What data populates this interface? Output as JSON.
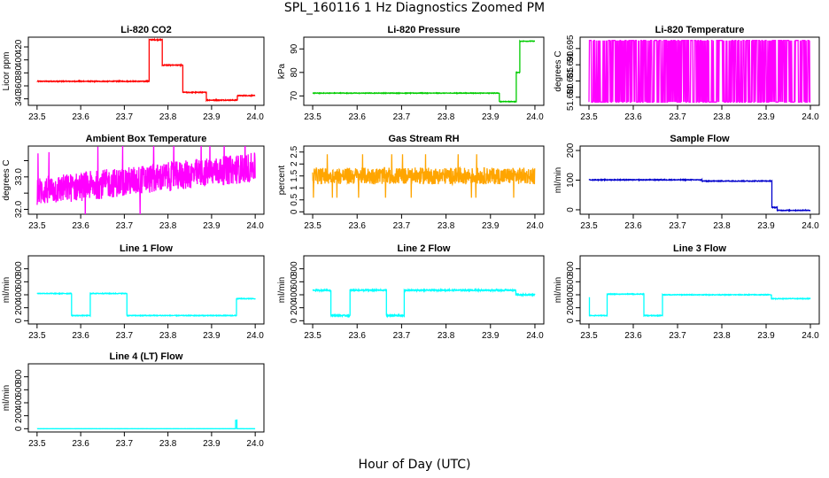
{
  "figure": {
    "title": "SPL_160116  1 Hz Diagnostics Zoomed PM",
    "xlabel": "Hour of Day (UTC)"
  },
  "chart_data": [
    {
      "id": "co2",
      "type": "line",
      "title": "Li-820 CO2",
      "ylabel": "Licor ppm",
      "color": "#ff0000",
      "xlim": [
        23.48,
        24.02
      ],
      "xticks": [
        "23.5",
        "23.6",
        "23.7",
        "23.8",
        "23.9",
        "24.0"
      ],
      "ylim": [
        330,
        435
      ],
      "yticks": [
        340,
        360,
        380,
        400,
        420
      ],
      "noise": 0.6,
      "segments": [
        [
          23.5,
          23.757,
          367
        ],
        [
          23.757,
          23.787,
          431
        ],
        [
          23.787,
          23.834,
          392
        ],
        [
          23.834,
          23.888,
          350
        ],
        [
          23.888,
          23.959,
          338
        ],
        [
          23.959,
          24.0,
          345
        ]
      ]
    },
    {
      "id": "pressure",
      "type": "line",
      "title": "Li-820 Pressure",
      "ylabel": "kPa",
      "color": "#00cc00",
      "xlim": [
        23.48,
        24.02
      ],
      "xticks": [
        "23.5",
        "23.6",
        "23.7",
        "23.8",
        "23.9",
        "24.0"
      ],
      "ylim": [
        66,
        95
      ],
      "yticks": [
        70,
        80,
        90
      ],
      "noise": 0.12,
      "segments": [
        [
          23.5,
          23.92,
          71.2
        ],
        [
          23.92,
          23.958,
          67.6
        ],
        [
          23.958,
          23.966,
          80
        ],
        [
          23.966,
          24.0,
          93.3
        ]
      ]
    },
    {
      "id": "temperature",
      "type": "binary",
      "title": "Li-820 Temperature",
      "ylabel": "degrees C",
      "color": "#ff00ff",
      "xlim": [
        23.48,
        24.02
      ],
      "xticks": [
        "23.5",
        "23.6",
        "23.7",
        "23.8",
        "23.9",
        "24.0"
      ],
      "ylim": [
        51.6775,
        51.6985
      ],
      "yticks": [
        51.68,
        51.685,
        51.69,
        51.695
      ],
      "ytick_labels": [
        "51.680",
        "51.685",
        "51.690",
        "51.695"
      ],
      "levels": [
        51.6785,
        51.6975
      ]
    },
    {
      "id": "ambient",
      "type": "noisy",
      "title": "Ambient Box Temperature",
      "ylabel": "degrees C",
      "color": "#ff00ff",
      "xlim": [
        23.48,
        24.02
      ],
      "xticks": [
        "23.5",
        "23.6",
        "23.7",
        "23.8",
        "23.9",
        "24.0"
      ],
      "ylim": [
        31.85,
        33.95
      ],
      "yticks": [
        32.0,
        32.5,
        33.0,
        33.5
      ],
      "ytick_labels": [
        "32.0",
        "",
        "33.0",
        ""
      ],
      "trend": [
        [
          23.5,
          32.55
        ],
        [
          24.0,
          33.3
        ]
      ],
      "amplitude": 0.45
    },
    {
      "id": "rh",
      "type": "noisy",
      "title": "Gas Stream RH",
      "ylabel": "percent",
      "color": "#ffa500",
      "xlim": [
        23.48,
        24.02
      ],
      "xticks": [
        "23.5",
        "23.6",
        "23.7",
        "23.8",
        "23.9",
        "24.0"
      ],
      "ylim": [
        -0.1,
        2.75
      ],
      "yticks": [
        0.0,
        0.5,
        1.0,
        1.5,
        2.0,
        2.5
      ],
      "trend": [
        [
          23.5,
          1.5
        ],
        [
          24.0,
          1.5
        ]
      ],
      "amplitude": 0.35
    },
    {
      "id": "sample_flow",
      "type": "line",
      "title": "Sample Flow",
      "ylabel": "ml/min",
      "color": "#0000cc",
      "xlim": [
        23.48,
        24.02
      ],
      "xticks": [
        "23.5",
        "23.6",
        "23.7",
        "23.8",
        "23.9",
        "24.0"
      ],
      "ylim": [
        -15,
        215
      ],
      "yticks": [
        0,
        100,
        200
      ],
      "noise": 1.2,
      "segments": [
        [
          23.5,
          23.755,
          101
        ],
        [
          23.755,
          23.913,
          97
        ],
        [
          23.913,
          23.925,
          8
        ],
        [
          23.925,
          24.0,
          -2
        ]
      ]
    },
    {
      "id": "line1",
      "type": "line",
      "title": "Line 1 Flow",
      "ylabel": "ml/min",
      "color": "#00ffff",
      "xlim": [
        23.48,
        24.02
      ],
      "xticks": [
        "23.5",
        "23.6",
        "23.7",
        "23.8",
        "23.9",
        "24.0"
      ],
      "ylim": [
        -50,
        1000
      ],
      "yticks": [
        0,
        200,
        400,
        600,
        800
      ],
      "noise": 5,
      "segments": [
        [
          23.5,
          23.579,
          420
        ],
        [
          23.579,
          23.622,
          80
        ],
        [
          23.622,
          23.706,
          420
        ],
        [
          23.706,
          23.957,
          80
        ],
        [
          23.957,
          24.0,
          340
        ]
      ]
    },
    {
      "id": "line2",
      "type": "line",
      "title": "Line 2 Flow",
      "ylabel": "ml/min",
      "color": "#00ffff",
      "xlim": [
        23.48,
        24.02
      ],
      "xticks": [
        "23.5",
        "23.6",
        "23.7",
        "23.8",
        "23.9",
        "24.0"
      ],
      "ylim": [
        -50,
        1000
      ],
      "yticks": [
        0,
        200,
        400,
        600,
        800
      ],
      "noise": 10,
      "segments": [
        [
          23.5,
          23.541,
          470
        ],
        [
          23.541,
          23.584,
          80
        ],
        [
          23.584,
          23.666,
          470
        ],
        [
          23.666,
          23.706,
          80
        ],
        [
          23.706,
          23.957,
          470
        ],
        [
          23.957,
          24.0,
          400
        ]
      ]
    },
    {
      "id": "line3",
      "type": "line",
      "title": "Line 3 Flow",
      "ylabel": "ml/min",
      "color": "#00ffff",
      "xlim": [
        23.48,
        24.02
      ],
      "xticks": [
        "23.5",
        "23.6",
        "23.7",
        "23.8",
        "23.9",
        "24.0"
      ],
      "ylim": [
        -50,
        1000
      ],
      "yticks": [
        0,
        200,
        400,
        600,
        800
      ],
      "noise": 5,
      "segments": [
        [
          23.5,
          23.501,
          350
        ],
        [
          23.501,
          23.541,
          80
        ],
        [
          23.541,
          23.624,
          410
        ],
        [
          23.624,
          23.666,
          80
        ],
        [
          23.666,
          23.912,
          400
        ],
        [
          23.912,
          24.0,
          340
        ]
      ]
    },
    {
      "id": "line4",
      "type": "line",
      "title": "Line 4 (LT) Flow",
      "ylabel": "ml/min",
      "color": "#00ffff",
      "xlim": [
        23.48,
        24.02
      ],
      "xticks": [
        "23.5",
        "23.6",
        "23.7",
        "23.8",
        "23.9",
        "24.0"
      ],
      "ylim": [
        -50,
        1000
      ],
      "yticks": [
        0,
        200,
        400,
        600,
        800
      ],
      "noise": 1,
      "segments": [
        [
          23.5,
          23.955,
          0
        ],
        [
          23.955,
          23.958,
          130
        ],
        [
          23.958,
          24.0,
          0
        ]
      ]
    }
  ]
}
